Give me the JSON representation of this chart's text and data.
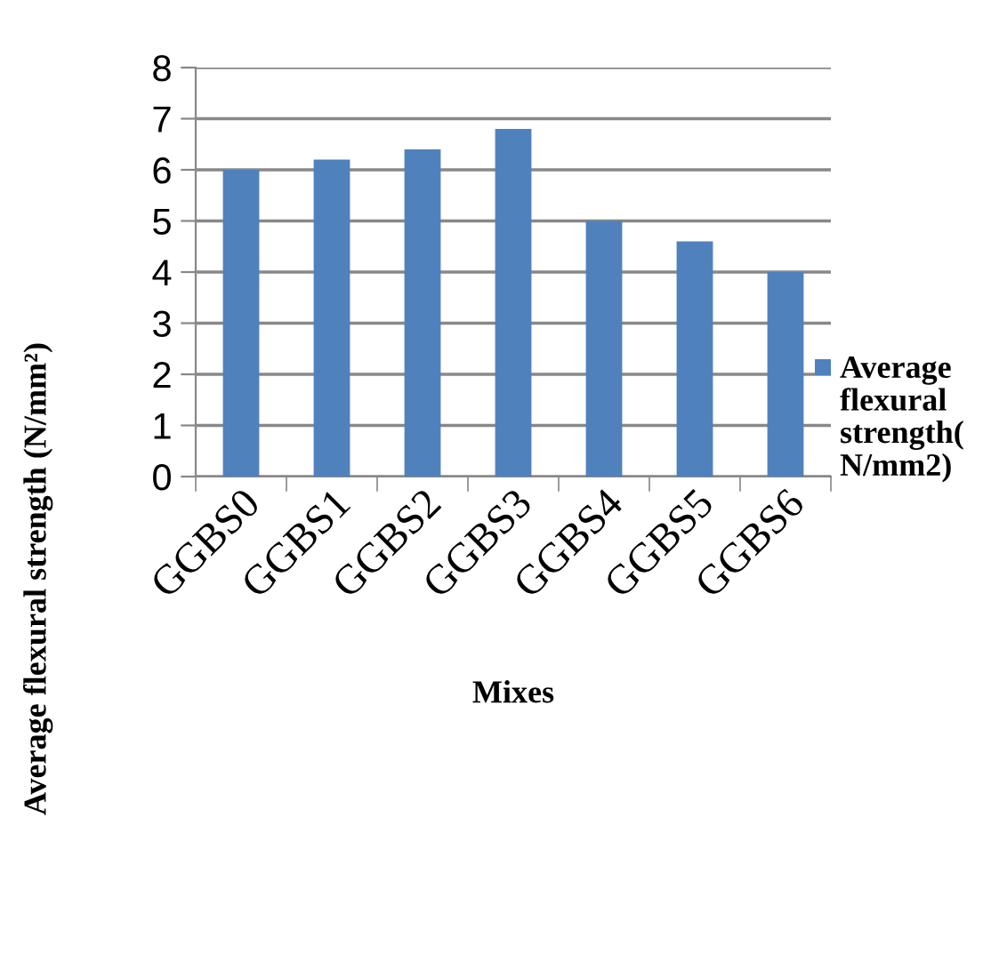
{
  "chart_data": {
    "type": "bar",
    "xlabel": "Mixes",
    "ylabel": "Average flexural strength (N/mm²)",
    "categories": [
      "GGBS0",
      "GGBS1",
      "GGBS2",
      "GGBS3",
      "GGBS4",
      "GGBS5",
      "GGBS6"
    ],
    "series": [
      {
        "name": "Average flexural strength( N/mm2)",
        "color": "#4f81bd",
        "values": [
          6.0,
          6.2,
          6.4,
          6.8,
          5.0,
          4.6,
          4.0
        ]
      }
    ],
    "ylim": [
      0,
      8
    ],
    "yticks": [
      0,
      1,
      2,
      3,
      4,
      5,
      6,
      7,
      8
    ],
    "grid": "y",
    "legend": "right"
  }
}
